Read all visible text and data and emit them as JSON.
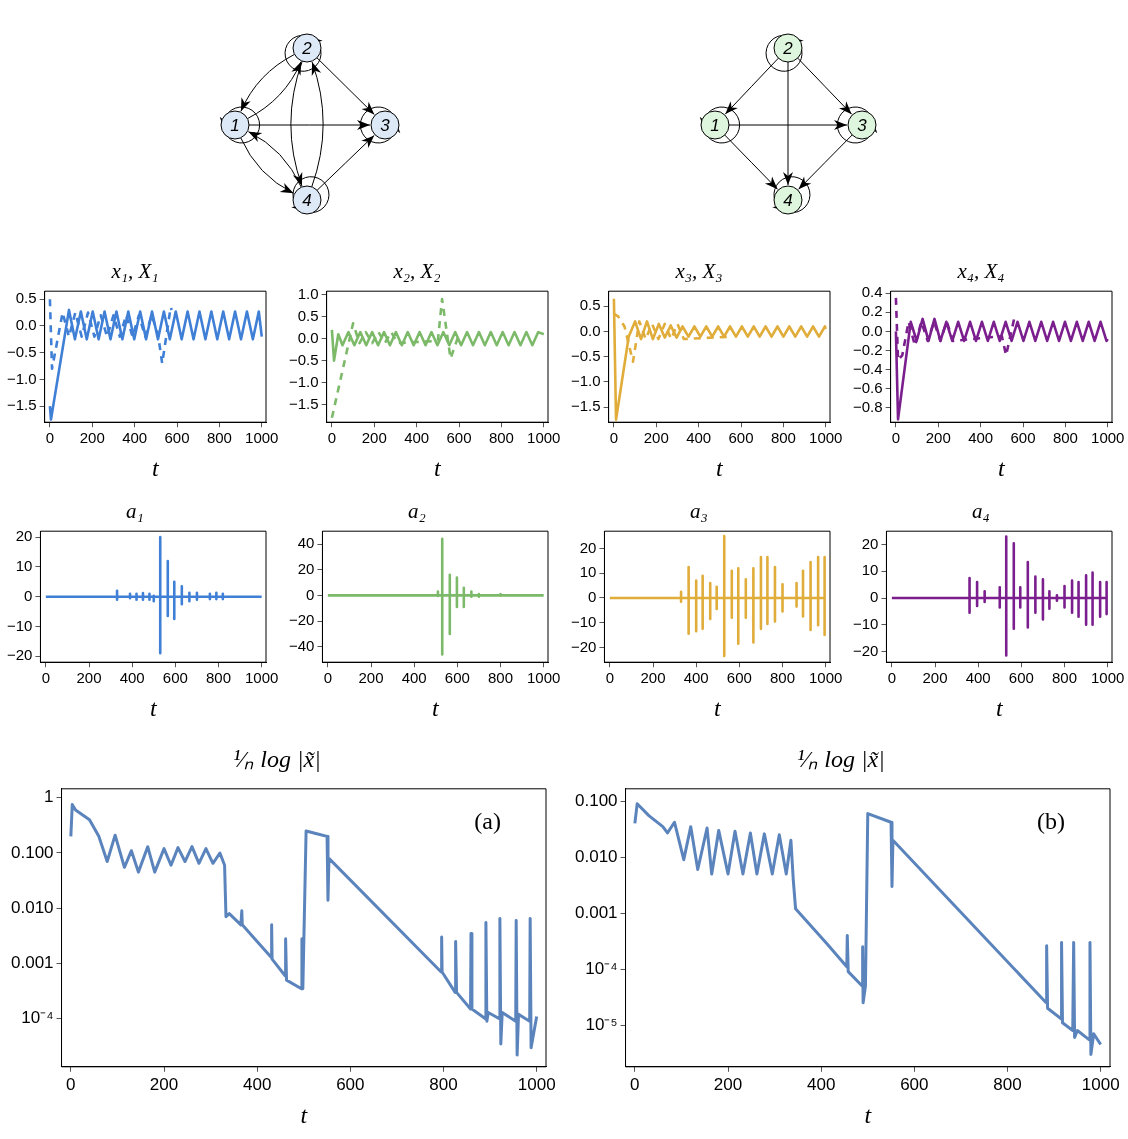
{
  "chart_data": [
    {
      "type": "other",
      "annotations": [
        "1",
        "2",
        "3",
        "4"
      ],
      "color": "#dde9f7"
    },
    {
      "type": "other",
      "annotations": [
        "1",
        "2",
        "3",
        "4"
      ],
      "color": "#ddf6dd"
    },
    {
      "type": "line",
      "title": "x₁, X₁",
      "xlabel": "t",
      "xlim": [
        -25,
        1020
      ],
      "xticks": [
        0,
        200,
        400,
        600,
        800,
        1000
      ],
      "ylim": [
        -1.8,
        0.65
      ],
      "yticks": [
        {
          "value": -1.5,
          "label": "−1.5"
        },
        {
          "value": -1,
          "label": "−1.0"
        },
        {
          "value": -0.5,
          "label": "−0.5"
        },
        {
          "value": 0,
          "label": "0.0"
        },
        0.5
      ],
      "series": [
        {
          "color": "#3f7fd6",
          "x": [
            0,
            5,
            90,
            118,
            146,
            174,
            202,
            230,
            258,
            286,
            314,
            342,
            370,
            398,
            426,
            454,
            482,
            510,
            538,
            566,
            594,
            622,
            650,
            678,
            706,
            734,
            762,
            790,
            818,
            846,
            874,
            902,
            930,
            958,
            986,
            1000
          ],
          "values": [
            -1.5,
            -1.75,
            0.3,
            -0.25,
            0.27,
            -0.25,
            0.27,
            -0.25,
            0.27,
            -0.25,
            0.27,
            -0.25,
            0.27,
            -0.25,
            0.27,
            -0.25,
            0.27,
            -0.25,
            0.27,
            -0.25,
            0.27,
            -0.25,
            0.27,
            -0.25,
            0.27,
            -0.25,
            0.27,
            -0.25,
            0.27,
            -0.25,
            0.27,
            -0.25,
            0.27,
            -0.25,
            0.27,
            -0.2
          ]
        },
        {
          "color": "#3f7fd6",
          "line_style": "dashed",
          "x": [
            0,
            10,
            60,
            90,
            120,
            150,
            180,
            210,
            240,
            270,
            300,
            330,
            360,
            390,
            420,
            450,
            480,
            510,
            530,
            570,
            575
          ],
          "values": [
            0.5,
            -0.8,
            0.25,
            -0.2,
            0.25,
            -0.2,
            0.25,
            -0.2,
            0.2,
            -0.2,
            0.2,
            -0.2,
            0.2,
            -0.2,
            0.2,
            -0.2,
            0.2,
            -0.15,
            -0.7,
            0.35,
            0.3
          ]
        }
      ]
    },
    {
      "type": "line",
      "title": "x₂, X₂",
      "xlabel": "t",
      "xlim": [
        -25,
        1020
      ],
      "xticks": [
        0,
        200,
        400,
        600,
        800,
        1000
      ],
      "ylim": [
        -1.9,
        1.08
      ],
      "yticks": [
        {
          "value": -1.5,
          "label": "−1.5"
        },
        {
          "value": -1,
          "label": "−1.0"
        },
        {
          "value": -0.5,
          "label": "−0.5"
        },
        {
          "value": 0,
          "label": "0.0"
        },
        0.5,
        {
          "value": 1,
          "label": "1.0"
        }
      ],
      "series": [
        {
          "color": "#7cba6a",
          "x": [
            0,
            10,
            30,
            50,
            78,
            106,
            134,
            162,
            190,
            218,
            246,
            274,
            302,
            330,
            358,
            386,
            414,
            442,
            470,
            498,
            526,
            554,
            582,
            610,
            638,
            666,
            694,
            722,
            750,
            778,
            806,
            834,
            862,
            890,
            918,
            946,
            974,
            1000
          ],
          "values": [
            0.2,
            -0.5,
            0.1,
            -0.15,
            0.15,
            -0.15,
            0.15,
            -0.15,
            0.15,
            -0.15,
            0.15,
            -0.15,
            0.15,
            -0.15,
            0.15,
            -0.15,
            0.15,
            -0.15,
            0.15,
            -0.15,
            0.15,
            -0.15,
            0.15,
            -0.15,
            0.15,
            -0.15,
            0.15,
            -0.15,
            0.15,
            -0.15,
            0.15,
            -0.15,
            0.15,
            -0.15,
            0.15,
            -0.15,
            0.15,
            0.1
          ]
        },
        {
          "color": "#7cba6a",
          "line_style": "dashed",
          "x": [
            0,
            100,
            130,
            160,
            190,
            220,
            250,
            280,
            310,
            500,
            520,
            560,
            600
          ],
          "values": [
            -1.8,
            0.35,
            -0.1,
            0.15,
            -0.1,
            0.15,
            -0.1,
            0.15,
            -0.1,
            -0.05,
            0.9,
            -0.45,
            0.1
          ]
        }
      ]
    },
    {
      "type": "line",
      "title": "x₃, X₃",
      "xlabel": "t",
      "xlim": [
        -25,
        1020
      ],
      "xticks": [
        0,
        200,
        400,
        600,
        800,
        1000
      ],
      "ylim": [
        -1.8,
        0.8
      ],
      "yticks": [
        {
          "value": -1.5,
          "label": "−1.5"
        },
        {
          "value": -1,
          "label": "−1.0"
        },
        {
          "value": -0.5,
          "label": "−0.5"
        },
        {
          "value": 0,
          "label": "0.0"
        },
        0.5
      ],
      "series": [
        {
          "color": "#e0ac3a",
          "x": [
            0,
            10,
            70,
            100,
            128,
            156,
            184,
            212,
            240,
            268,
            296,
            324,
            352,
            380,
            408,
            436,
            464,
            492,
            520,
            548,
            576,
            604,
            632,
            660,
            688,
            716,
            744,
            772,
            800,
            828,
            856,
            884,
            912,
            940,
            968,
            996,
            1000
          ],
          "values": [
            0.65,
            -1.75,
            -0.1,
            0.2,
            -0.15,
            0.2,
            -0.15,
            0.15,
            -0.12,
            0.12,
            -0.12,
            0.1,
            -0.1,
            0.1,
            -0.1,
            0.1,
            -0.1,
            0.1,
            -0.1,
            0.1,
            -0.1,
            0.1,
            -0.1,
            0.1,
            -0.1,
            0.1,
            -0.1,
            0.1,
            -0.1,
            0.1,
            -0.1,
            0.1,
            -0.1,
            0.1,
            -0.1,
            0.1,
            0.05
          ]
        },
        {
          "color": "#e0ac3a",
          "line_style": "dashed",
          "x": [
            0,
            20,
            50,
            90,
            120,
            150,
            180,
            210,
            240,
            270,
            300,
            330,
            560
          ],
          "values": [
            0.35,
            0.3,
            0.1,
            -0.6,
            0.2,
            -0.15,
            0.15,
            -0.15,
            0.15,
            -0.15,
            0.15,
            -0.15,
            -0.1
          ]
        }
      ]
    },
    {
      "type": "line",
      "title": "x₄, X₄",
      "xlabel": "t",
      "xlim": [
        -25,
        1020
      ],
      "xticks": [
        0,
        200,
        400,
        600,
        800,
        1000
      ],
      "ylim": [
        -0.95,
        0.42
      ],
      "yticks": [
        {
          "value": -0.8,
          "label": "−0.8"
        },
        {
          "value": -0.6,
          "label": "−0.6"
        },
        {
          "value": -0.4,
          "label": "−0.4"
        },
        {
          "value": -0.2,
          "label": "−0.2"
        },
        {
          "value": 0,
          "label": "0.0"
        },
        0.2,
        0.4
      ],
      "series": [
        {
          "color": "#7b1f8e",
          "x": [
            0,
            10,
            70,
            98,
            126,
            154,
            182,
            210,
            238,
            266,
            294,
            322,
            350,
            378,
            406,
            434,
            462,
            490,
            518,
            546,
            574,
            602,
            630,
            658,
            686,
            714,
            742,
            770,
            798,
            826,
            854,
            882,
            910,
            938,
            966,
            994,
            1000
          ],
          "values": [
            0,
            -0.92,
            0.1,
            -0.1,
            0.13,
            -0.1,
            0.13,
            -0.1,
            0.1,
            -0.1,
            0.1,
            -0.1,
            0.1,
            -0.1,
            0.1,
            -0.1,
            0.1,
            -0.1,
            0.1,
            -0.1,
            0.1,
            -0.1,
            0.1,
            -0.1,
            0.1,
            -0.1,
            0.1,
            -0.1,
            0.1,
            -0.1,
            0.1,
            -0.1,
            0.1,
            -0.1,
            0.1,
            -0.1,
            -0.08
          ]
        },
        {
          "color": "#7b1f8e",
          "line_style": "dashed",
          "x": [
            0,
            10,
            30,
            60,
            90,
            120,
            150,
            180,
            210,
            240,
            270,
            500,
            520,
            560
          ],
          "values": [
            0.35,
            -0.3,
            -0.25,
            0.1,
            -0.15,
            0.1,
            -0.1,
            0.1,
            -0.1,
            0.1,
            -0.1,
            -0.05,
            -0.25,
            0.15
          ]
        }
      ]
    },
    {
      "type": "line",
      "title": "a₁",
      "xlabel": "t",
      "xlim": [
        -25,
        1020
      ],
      "xticks": [
        0,
        200,
        400,
        600,
        800,
        1000
      ],
      "ylim": [
        -22,
        22
      ],
      "yticks": [
        {
          "value": -20,
          "label": "−20"
        },
        {
          "value": -10,
          "label": "−10"
        },
        0,
        10,
        20
      ],
      "series": [
        {
          "color": "#3f7fd6",
          "x": [
            0,
            330,
            330,
            330,
            330,
            390,
            390,
            390,
            390,
            420,
            420,
            420,
            420,
            450,
            450,
            450,
            450,
            480,
            480,
            480,
            480,
            500,
            500,
            500,
            500,
            530,
            530,
            530,
            530,
            565,
            565,
            565,
            565,
            595,
            595,
            595,
            595,
            630,
            630,
            630,
            630,
            665,
            665,
            665,
            665,
            700,
            700,
            700,
            700,
            760,
            760,
            760,
            760,
            790,
            790,
            790,
            790,
            820,
            820,
            820,
            820,
            1000
          ],
          "values": [
            0,
            0,
            2,
            -1,
            0,
            0,
            1,
            -0.5,
            0,
            0,
            1,
            -1,
            0,
            0,
            1.2,
            -1,
            0,
            0,
            1,
            -1,
            0,
            0,
            0.3,
            -1.5,
            0,
            0,
            20,
            -19,
            0,
            0,
            12,
            -6.5,
            0,
            0,
            5,
            -7.5,
            0,
            0,
            3.5,
            -2.5,
            0,
            0,
            1.3,
            -1.5,
            0,
            0,
            1.3,
            -1,
            0,
            0,
            1,
            -0.8,
            0,
            0,
            1.3,
            -0.8,
            0,
            0,
            1,
            -0.8,
            0,
            0
          ]
        }
      ]
    },
    {
      "type": "line",
      "title": "a₂",
      "xlabel": "t",
      "xlim": [
        -25,
        1020
      ],
      "xticks": [
        0,
        200,
        400,
        600,
        800,
        1000
      ],
      "ylim": [
        -52,
        50
      ],
      "yticks": [
        {
          "value": -40,
          "label": "−40"
        },
        {
          "value": -20,
          "label": "−20"
        },
        0,
        20,
        40
      ],
      "series": [
        {
          "color": "#7cba6a",
          "x": [
            0,
            510,
            510,
            510,
            510,
            530,
            530,
            530,
            530,
            565,
            565,
            565,
            565,
            598,
            598,
            598,
            598,
            630,
            630,
            630,
            630,
            665,
            665,
            665,
            665,
            700,
            700,
            700,
            700,
            800,
            800,
            800,
            800,
            1000
          ],
          "values": [
            0,
            0,
            3,
            -0.5,
            0,
            0,
            44,
            -46,
            0,
            0,
            16,
            -30,
            0,
            0,
            14,
            -9,
            0,
            0,
            6,
            -9,
            0,
            0,
            3,
            -1,
            0,
            0,
            1,
            -1,
            0,
            0,
            1,
            -0.3,
            0,
            0
          ]
        }
      ]
    },
    {
      "type": "line",
      "title": "a₃",
      "xlabel": "t",
      "xlim": [
        -25,
        1020
      ],
      "xticks": [
        0,
        200,
        400,
        600,
        800,
        1000
      ],
      "ylim": [
        -26,
        27
      ],
      "yticks": [
        {
          "value": -20,
          "label": "−20"
        },
        {
          "value": -10,
          "label": "−10"
        },
        0,
        10,
        20
      ],
      "series": [
        {
          "color": "#e0ac3a",
          "x": [
            0,
            330,
            330,
            330,
            330,
            365,
            365,
            365,
            365,
            400,
            400,
            400,
            400,
            430,
            430,
            430,
            430,
            465,
            465,
            465,
            465,
            495,
            495,
            495,
            495,
            530,
            530,
            530,
            530,
            565,
            565,
            565,
            565,
            595,
            595,
            595,
            595,
            630,
            630,
            630,
            630,
            665,
            665,
            665,
            665,
            700,
            700,
            700,
            700,
            730,
            730,
            730,
            730,
            765,
            765,
            765,
            765,
            800,
            800,
            800,
            800,
            865,
            865,
            865,
            865,
            895,
            895,
            895,
            895,
            930,
            930,
            930,
            930,
            965,
            965,
            965,
            965,
            995,
            995,
            995,
            995,
            1000
          ],
          "values": [
            0,
            0,
            2.5,
            -1.5,
            0,
            0,
            12.5,
            -14.5,
            0,
            0,
            7,
            -13.5,
            0,
            0,
            9,
            -12.5,
            0,
            0,
            6,
            -8.5,
            0,
            0,
            4.5,
            -4.5,
            0,
            0,
            25,
            -23.5,
            0,
            0,
            11,
            -8,
            0,
            0,
            12,
            -18.5,
            0,
            0,
            7.5,
            -8,
            0,
            0,
            12,
            -18,
            0,
            0,
            16.5,
            -12.5,
            0,
            0,
            16.5,
            -10.5,
            0,
            0,
            12.5,
            -9.5,
            0,
            0,
            5.5,
            -5.5,
            0,
            0,
            6,
            -3.5,
            0,
            0,
            11,
            -7.5,
            0,
            0,
            14.5,
            -13,
            0,
            0,
            16.5,
            -11,
            0,
            0,
            16.5,
            -15,
            0,
            0
          ]
        }
      ]
    },
    {
      "type": "line",
      "title": "a₄",
      "xlabel": "t",
      "xlim": [
        -25,
        1020
      ],
      "xticks": [
        0,
        200,
        400,
        600,
        800,
        1000
      ],
      "ylim": [
        -24,
        25
      ],
      "yticks": [
        {
          "value": -20,
          "label": "−20"
        },
        {
          "value": -10,
          "label": "−10"
        },
        0,
        10,
        20
      ],
      "series": [
        {
          "color": "#7b1f8e",
          "x": [
            0,
            360,
            360,
            360,
            360,
            395,
            395,
            395,
            395,
            430,
            430,
            430,
            430,
            500,
            500,
            500,
            500,
            530,
            530,
            530,
            530,
            565,
            565,
            565,
            565,
            595,
            595,
            595,
            595,
            630,
            630,
            630,
            630,
            665,
            665,
            665,
            665,
            700,
            700,
            700,
            700,
            730,
            730,
            730,
            730,
            765,
            765,
            765,
            765,
            800,
            800,
            800,
            800,
            835,
            835,
            835,
            835,
            865,
            865,
            865,
            865,
            900,
            900,
            900,
            900,
            930,
            930,
            930,
            930,
            965,
            965,
            965,
            965,
            995,
            995,
            995,
            995,
            1000
          ],
          "values": [
            0,
            0,
            7.5,
            -5.5,
            0,
            0,
            6,
            -3,
            0,
            0,
            2.5,
            -1.5,
            0,
            0,
            4,
            -3.5,
            0,
            0,
            23,
            -21.5,
            0,
            0,
            20.5,
            -11.5,
            0,
            0,
            4,
            -3.5,
            0,
            0,
            13.5,
            -11,
            0,
            0,
            8,
            -5.5,
            0,
            0,
            7,
            -8,
            0,
            0,
            2.5,
            -4,
            0,
            0,
            1,
            -1,
            0,
            0,
            4.5,
            -3.5,
            0,
            0,
            6.5,
            -5.5,
            0,
            0,
            6,
            -7,
            0,
            0,
            8.5,
            -10,
            0,
            0,
            9.5,
            -10,
            0,
            0,
            6,
            -7,
            0,
            0,
            6,
            -6,
            0,
            0
          ]
        }
      ]
    },
    {
      "type": "line",
      "title": "¹⁄ₙ log |x̃|",
      "xlabel": "t",
      "log": true,
      "annotations": [
        "(a)"
      ],
      "xlim": [
        -20,
        1020
      ],
      "xticks": [
        0,
        200,
        400,
        600,
        800,
        1000
      ],
      "ylim": [
        1.35e-05,
        1.45
      ],
      "yticks": [
        1,
        {
          "value": 0.1,
          "label": "0.100"
        },
        {
          "value": 0.01,
          "label": "0.010"
        },
        0.001,
        {
          "value": 0.0001,
          "label": "10⁻⁴"
        }
      ],
      "series": [
        {
          "color": "#5b84bd",
          "x": [
            0,
            3,
            10,
            40,
            60,
            78,
            95,
            115,
            130,
            145,
            165,
            180,
            200,
            215,
            230,
            245,
            260,
            275,
            290,
            305,
            320,
            330,
            333,
            340,
            365,
            367,
            368,
            430,
            431,
            432,
            460,
            461,
            463,
            495,
            496,
            498,
            505,
            530,
            550,
            552,
            554,
            795,
            796,
            797,
            825,
            826,
            828,
            858,
            859,
            861,
            890,
            891,
            893,
            896,
            920,
            921,
            923,
            926,
            955,
            956,
            958,
            961,
            985,
            986,
            988,
            1000
          ],
          "values": [
            0.2,
            0.75,
            0.6,
            0.4,
            0.2,
            0.07,
            0.21,
            0.055,
            0.11,
            0.045,
            0.13,
            0.045,
            0.12,
            0.06,
            0.125,
            0.07,
            0.13,
            0.065,
            0.12,
            0.065,
            0.1,
            0.06,
            0.007,
            0.008,
            0.005,
            0.009,
            0.005,
            0.0013,
            0.005,
            0.0012,
            0.0006,
            0.0028,
            0.0005,
            0.00035,
            0.0028,
            0.00035,
            0.25,
            0.22,
            0.2,
            0.014,
            0.08,
            0.0007,
            0.003,
            0.0007,
            0.0003,
            0.0025,
            0.0003,
            0.00015,
            0.0035,
            0.00015,
            0.0001,
            0.0055,
            9e-05,
            0.00013,
            0.0001,
            0.0065,
            3.5e-05,
            0.00013,
            9e-05,
            0.006,
            2.2e-05,
            0.00012,
            9e-05,
            0.0065,
            3e-05,
            0.00011
          ]
        }
      ]
    },
    {
      "type": "line",
      "title": "¹⁄ₙ log |x̃|",
      "xlabel": "t",
      "log": true,
      "annotations": [
        "(b)"
      ],
      "xlim": [
        -20,
        1020
      ],
      "xticks": [
        0,
        200,
        400,
        600,
        800,
        1000
      ],
      "ylim": [
        1.8e-06,
        0.166
      ],
      "yticks": [
        {
          "value": 0.1,
          "label": "0.100"
        },
        {
          "value": 0.01,
          "label": "0.010"
        },
        0.001,
        {
          "value": 0.0001,
          "label": "10⁻⁴"
        },
        {
          "value": 1e-05,
          "label": "10⁻⁵"
        }
      ],
      "series": [
        {
          "color": "#5b84bd",
          "x": [
            0,
            5,
            30,
            60,
            70,
            85,
            105,
            120,
            135,
            155,
            165,
            180,
            200,
            215,
            232,
            248,
            262,
            278,
            295,
            310,
            325,
            335,
            340,
            345,
            410,
            455,
            456,
            458,
            488,
            489,
            490,
            495,
            500,
            550,
            552,
            554,
            883,
            884,
            886,
            915,
            916,
            918,
            940,
            942,
            944,
            950,
            975,
            977,
            979,
            985,
            1000
          ],
          "values": [
            0.04,
            0.09,
            0.055,
            0.035,
            0.027,
            0.042,
            0.009,
            0.035,
            0.006,
            0.033,
            0.005,
            0.03,
            0.005,
            0.029,
            0.005,
            0.027,
            0.005,
            0.026,
            0.005,
            0.025,
            0.005,
            0.02,
            0.004,
            0.0012,
            0.0003,
            0.00011,
            0.0004,
            9e-05,
            5e-05,
            0.00025,
            2.5e-05,
            5e-05,
            0.06,
            0.042,
            0.003,
            0.02,
            2.5e-05,
            0.00026,
            2e-05,
            1.3e-05,
            0.0003,
            1.1e-05,
            8e-06,
            0.0003,
            6e-06,
            8e-06,
            5.5e-06,
            0.0003,
            3e-06,
            7e-06,
            4.5e-06
          ]
        }
      ]
    }
  ]
}
